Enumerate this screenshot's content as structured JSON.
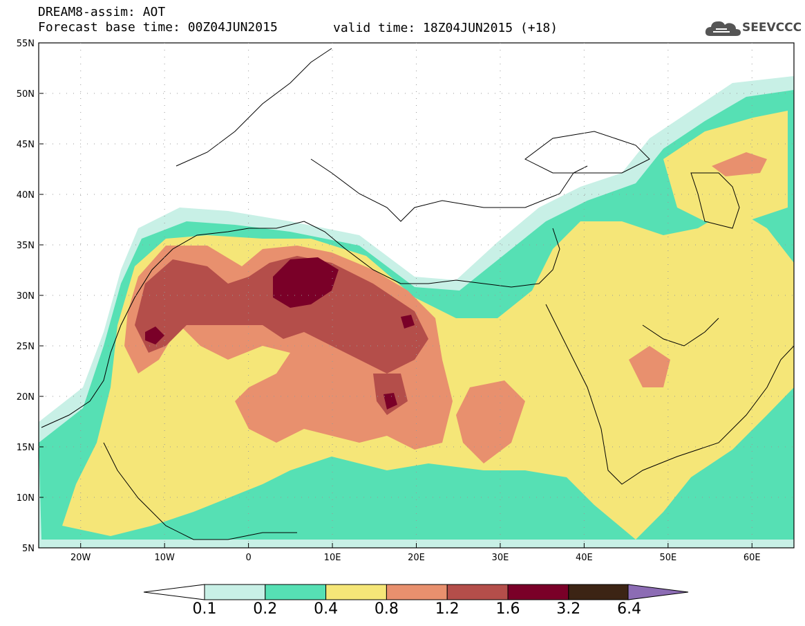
{
  "header": {
    "title": "DREAM8-assim: AOT",
    "base_time": "Forecast base time: 00Z04JUN2015",
    "valid_time": "valid time: 18Z04JUN2015 (+18)"
  },
  "logo": {
    "text": "SEEVCCC",
    "icon": "cloud-icon"
  },
  "map": {
    "extent": {
      "lon": [
        -25,
        65
      ],
      "lat": [
        5,
        55
      ]
    },
    "lat_ticks": [
      "55N",
      "50N",
      "45N",
      "40N",
      "35N",
      "30N",
      "25N",
      "20N",
      "15N",
      "10N",
      "5N"
    ],
    "lon_ticks": [
      "20W",
      "10W",
      "0",
      "10E",
      "20E",
      "30E",
      "40E",
      "50E",
      "60E"
    ]
  },
  "colorbar": {
    "colors": [
      "#c8f0e6",
      "#56e0b4",
      "#f5e678",
      "#e8906e",
      "#b44e4a",
      "#7a0028",
      "#3c2414",
      "#8c6cb4"
    ],
    "labels": [
      "0.1",
      "0.2",
      "0.4",
      "0.8",
      "1.2",
      "1.6",
      "3.2",
      "6.4"
    ]
  }
}
